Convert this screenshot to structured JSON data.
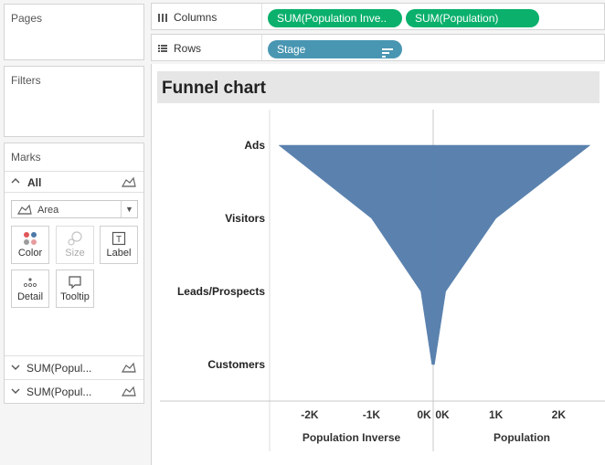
{
  "cards": {
    "pages": {
      "title": "Pages"
    },
    "filters": {
      "title": "Filters"
    },
    "marks": {
      "title": "Marks",
      "all_label": "All",
      "mark_type": "Area",
      "buttons": [
        {
          "label": "Color",
          "enabled": true
        },
        {
          "label": "Size",
          "enabled": false
        },
        {
          "label": "Label",
          "enabled": true
        },
        {
          "label": "Detail",
          "enabled": true
        },
        {
          "label": "Tooltip",
          "enabled": true
        }
      ],
      "fields": [
        {
          "label": "SUM(Popul..."
        },
        {
          "label": "SUM(Popul..."
        }
      ]
    }
  },
  "shelves": {
    "columns": {
      "name": "Columns",
      "pills": [
        "SUM(Population Inve..",
        "SUM(Population)"
      ]
    },
    "rows": {
      "name": "Rows",
      "pills": [
        "Stage"
      ]
    }
  },
  "colors": {
    "green_pill": "#0ab06c",
    "blue_pill": "#4996b2",
    "area_fill": "#5b82ae"
  },
  "chart_data": {
    "type": "area",
    "title": "Funnel chart",
    "categories": [
      "Ads",
      "Visitors",
      "Leads/Prospects",
      "Customers"
    ],
    "series": [
      {
        "name": "Population Inverse",
        "values": [
          -2500,
          -1000,
          -200,
          -20
        ]
      },
      {
        "name": "Population",
        "values": [
          2500,
          1000,
          200,
          20
        ]
      }
    ],
    "panes": [
      {
        "xlabel": "Population Inverse",
        "ticks": [
          "-2K",
          "-1K",
          "0K"
        ],
        "tick_values": [
          -2000,
          -1000,
          0
        ],
        "xlim": [
          -2650,
          0
        ]
      },
      {
        "xlabel": "Population",
        "ticks": [
          "0K",
          "1K",
          "2K"
        ],
        "tick_values": [
          0,
          1000,
          2000
        ],
        "xlim": [
          0,
          2650
        ]
      }
    ],
    "grid": false,
    "legend": "none"
  }
}
